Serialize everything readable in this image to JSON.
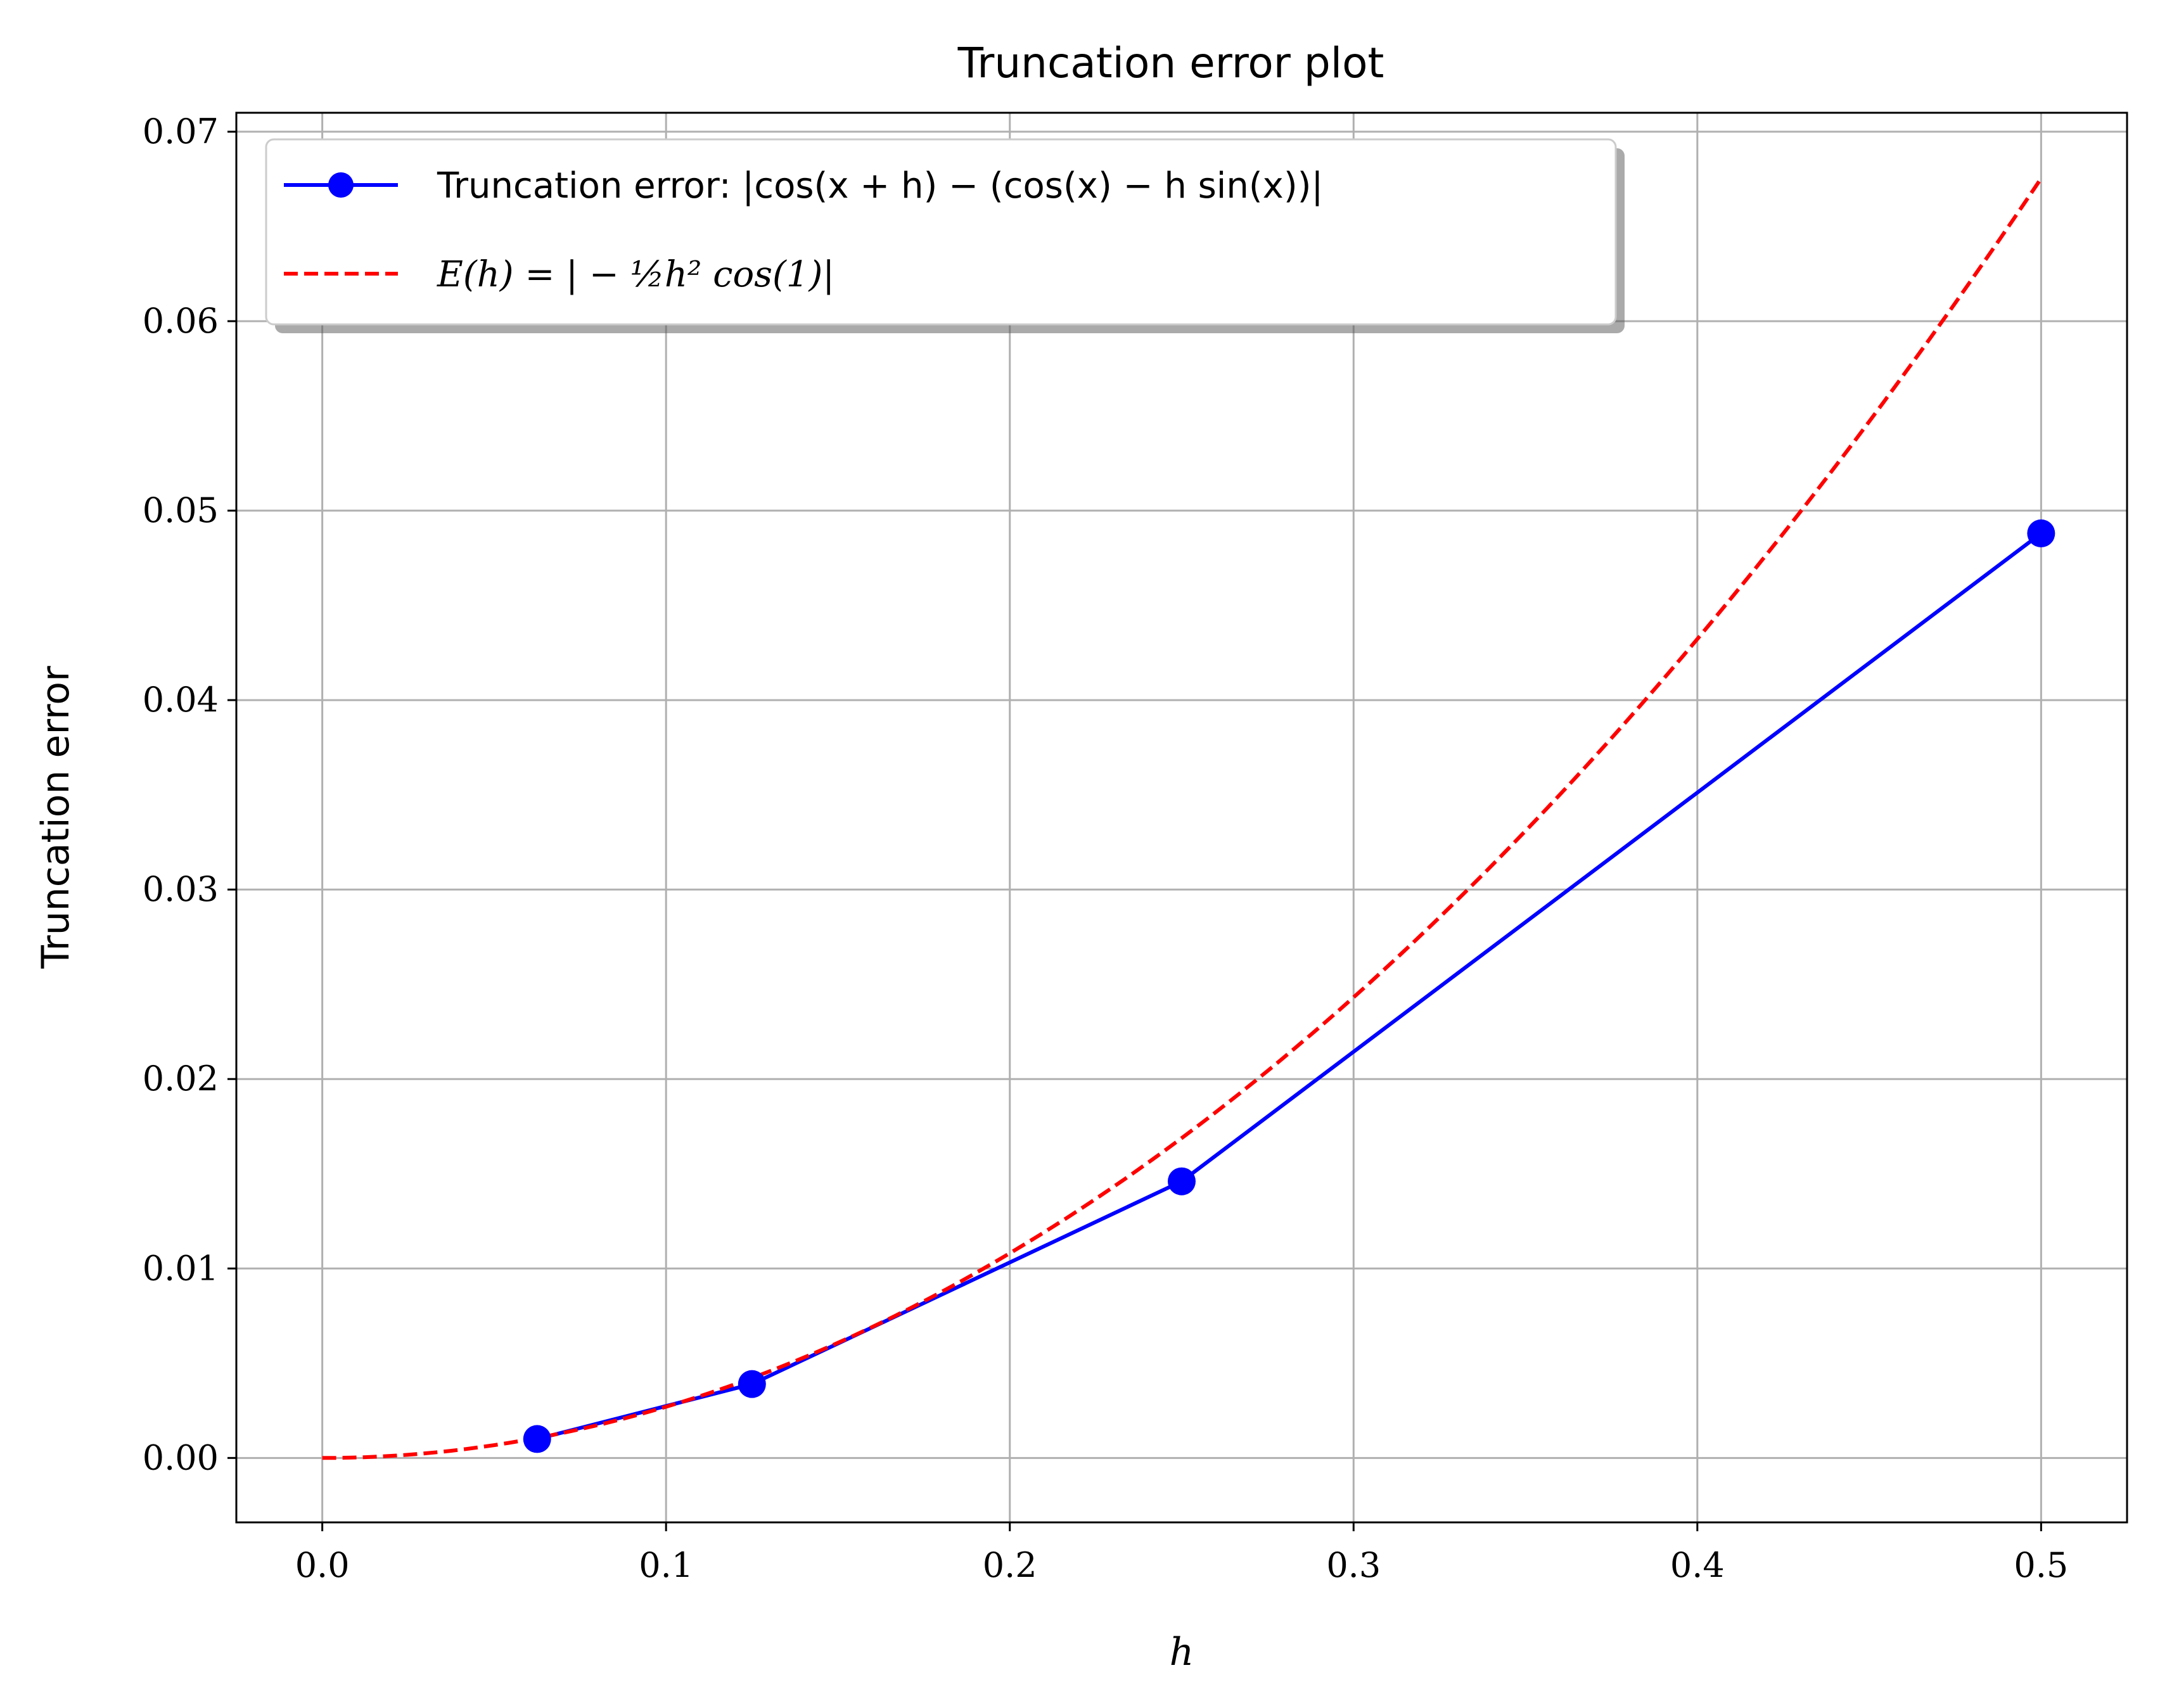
{
  "chart_data": {
    "type": "line",
    "title": "Truncation error plot",
    "xlabel": "h",
    "ylabel": "Truncation error",
    "xlim": [
      -0.025,
      0.525
    ],
    "ylim": [
      -0.0034,
      0.071
    ],
    "xticks": [
      0.0,
      0.1,
      0.2,
      0.3,
      0.4,
      0.5
    ],
    "xtick_labels": [
      "0.0",
      "0.1",
      "0.2",
      "0.3",
      "0.4",
      "0.5"
    ],
    "yticks": [
      0.0,
      0.01,
      0.02,
      0.03,
      0.04,
      0.05,
      0.06,
      0.07
    ],
    "ytick_labels": [
      "0.00",
      "0.01",
      "0.02",
      "0.03",
      "0.04",
      "0.05",
      "0.06",
      "0.07"
    ],
    "grid": true,
    "legend_position": "top-left",
    "series": [
      {
        "name": "Truncation error: |cos(x + h) − (cos(x) − h sin(x))|",
        "style": "solid-marker",
        "color": "#0000ff",
        "x": [
          0.0625,
          0.125,
          0.25,
          0.5
        ],
        "y": [
          0.001,
          0.0039,
          0.0146,
          0.0488
        ]
      },
      {
        "name": "E(h) = | − ½h² cos(1)|",
        "style": "dashed",
        "color": "#ff0000",
        "function": "0.5*h^2*cos(1)",
        "x_range": [
          0.0,
          0.5
        ]
      }
    ]
  }
}
